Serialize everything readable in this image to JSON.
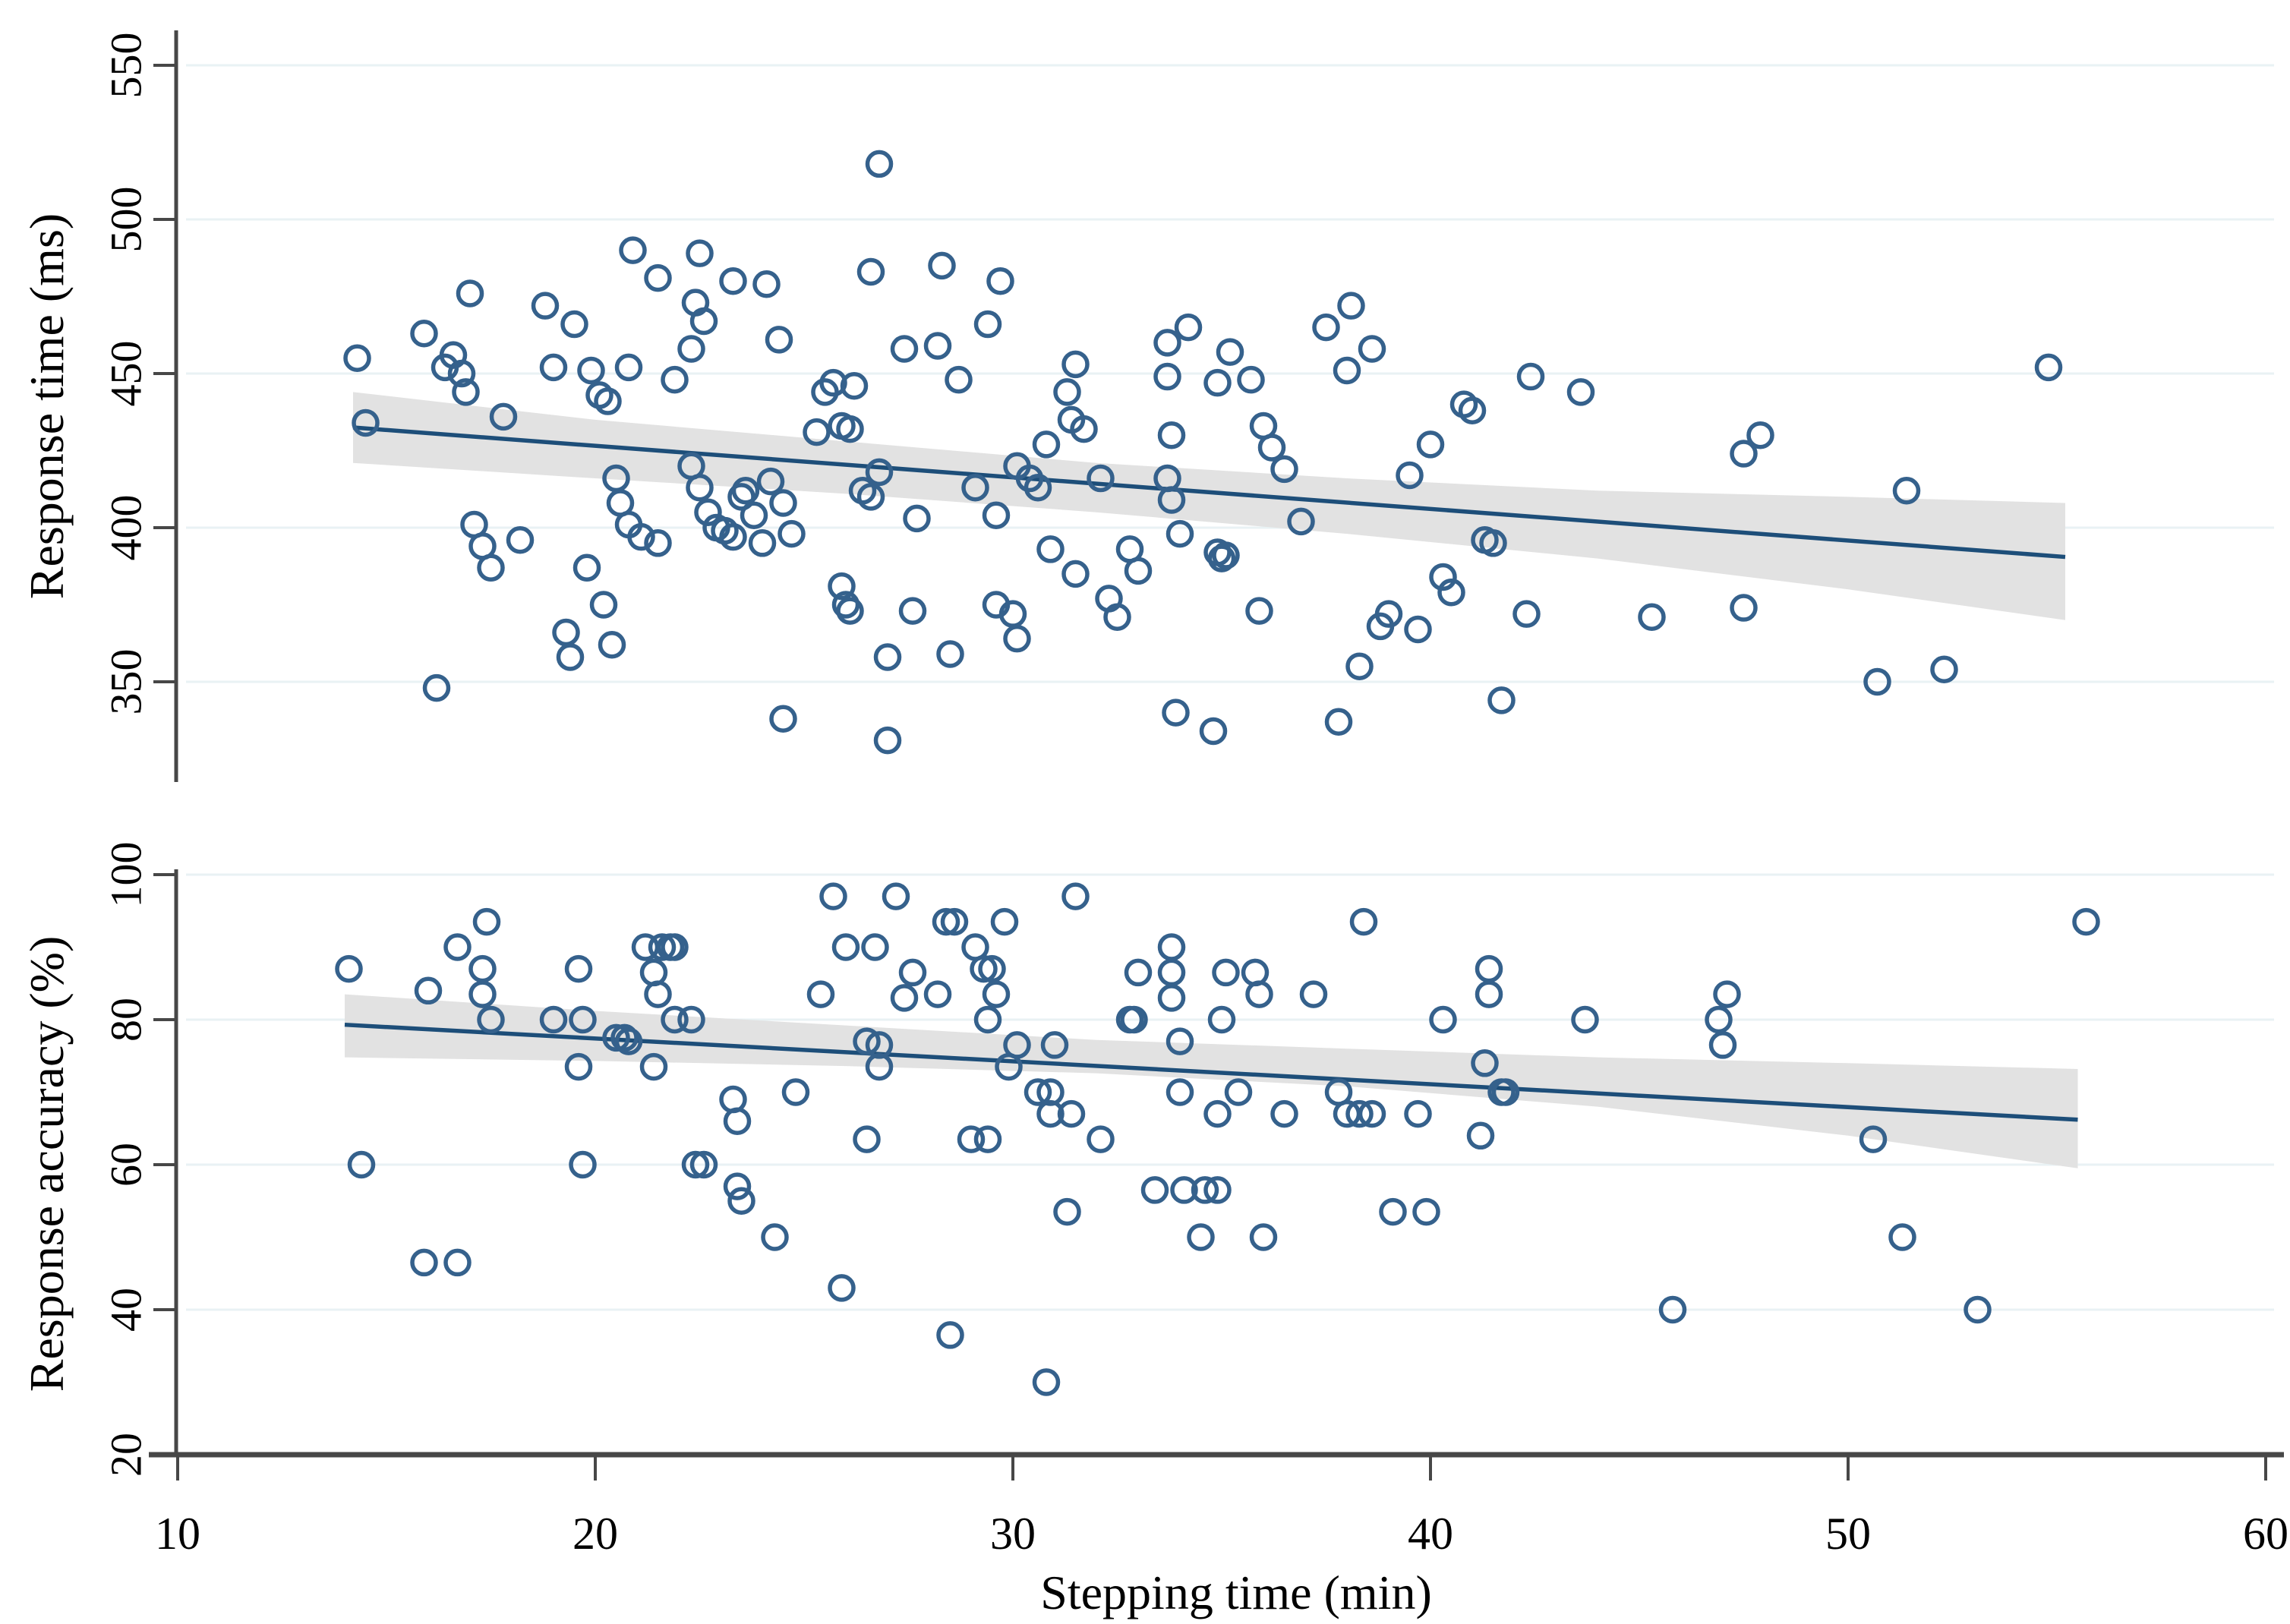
{
  "figure": {
    "xlabel": "Stepping time (min)",
    "top_ylabel": "Response time (ms)",
    "bottom_ylabel": "Response accuracy (%)"
  },
  "colors": {
    "marker": "#35618c",
    "trend_line": "#1d4e79",
    "ci_band": "#e2e2e2",
    "gridline": "#e9f2f4",
    "axis": "#474747",
    "text": "#000000"
  },
  "chart_data": [
    {
      "type": "scatter",
      "panel": "top",
      "ylabel": "Response time (ms)",
      "xlabel": "Stepping time (min)",
      "xlim": [
        10,
        60
      ],
      "ylim": [
        317,
        562
      ],
      "xticks": [
        10,
        20,
        30,
        40,
        50,
        60
      ],
      "yticks": [
        350,
        400,
        450,
        500,
        550
      ],
      "grid": true,
      "legend": "none",
      "points": [
        [
          14.3,
          455
        ],
        [
          14.5,
          434
        ],
        [
          15.9,
          463
        ],
        [
          16.2,
          348
        ],
        [
          16.4,
          452
        ],
        [
          16.6,
          456
        ],
        [
          16.8,
          450
        ],
        [
          16.9,
          444
        ],
        [
          17.0,
          476
        ],
        [
          17.1,
          401
        ],
        [
          17.3,
          394
        ],
        [
          17.5,
          387
        ],
        [
          17.8,
          436
        ],
        [
          18.2,
          396
        ],
        [
          18.8,
          472
        ],
        [
          19.0,
          452
        ],
        [
          19.3,
          366
        ],
        [
          19.4,
          358
        ],
        [
          19.5,
          466
        ],
        [
          19.8,
          387
        ],
        [
          19.9,
          451
        ],
        [
          20.1,
          443
        ],
        [
          20.2,
          375
        ],
        [
          20.4,
          362
        ],
        [
          20.3,
          441
        ],
        [
          20.9,
          490
        ],
        [
          21.5,
          481
        ],
        [
          20.5,
          416
        ],
        [
          20.6,
          408
        ],
        [
          20.8,
          401
        ],
        [
          21.1,
          397
        ],
        [
          21.5,
          395
        ],
        [
          20.8,
          452
        ],
        [
          21.9,
          448
        ],
        [
          22.3,
          458
        ],
        [
          22.4,
          473
        ],
        [
          22.6,
          467
        ],
        [
          22.3,
          420
        ],
        [
          22.5,
          413
        ],
        [
          22.7,
          405
        ],
        [
          22.9,
          400
        ],
        [
          23.1,
          399
        ],
        [
          23.3,
          397
        ],
        [
          23.5,
          410
        ],
        [
          23.6,
          412
        ],
        [
          23.8,
          404
        ],
        [
          24.0,
          395
        ],
        [
          22.5,
          489
        ],
        [
          23.3,
          480
        ],
        [
          24.1,
          479
        ],
        [
          24.4,
          461
        ],
        [
          24.2,
          415
        ],
        [
          24.5,
          408
        ],
        [
          24.7,
          398
        ],
        [
          24.5,
          338
        ],
        [
          25.3,
          431
        ],
        [
          25.5,
          444
        ],
        [
          25.7,
          447
        ],
        [
          25.9,
          433
        ],
        [
          26.1,
          432
        ],
        [
          26.2,
          446
        ],
        [
          25.9,
          381
        ],
        [
          26.0,
          375
        ],
        [
          26.1,
          373
        ],
        [
          26.4,
          412
        ],
        [
          26.6,
          410
        ],
        [
          26.8,
          418
        ],
        [
          26.6,
          483
        ],
        [
          26.8,
          518
        ],
        [
          27.0,
          331
        ],
        [
          27.4,
          458
        ],
        [
          28.2,
          459
        ],
        [
          28.3,
          485
        ],
        [
          28.7,
          448
        ],
        [
          29.4,
          466
        ],
        [
          29.7,
          480
        ],
        [
          27.7,
          403
        ],
        [
          27.6,
          373
        ],
        [
          27.0,
          358
        ],
        [
          28.5,
          359
        ],
        [
          30.1,
          364
        ],
        [
          29.1,
          413
        ],
        [
          29.6,
          404
        ],
        [
          30.1,
          420
        ],
        [
          30.4,
          416
        ],
        [
          30.6,
          413
        ],
        [
          30.8,
          427
        ],
        [
          29.6,
          375
        ],
        [
          30.0,
          372
        ],
        [
          30.9,
          393
        ],
        [
          32.8,
          393
        ],
        [
          31.3,
          444
        ],
        [
          31.5,
          453
        ],
        [
          31.4,
          435
        ],
        [
          31.7,
          432
        ],
        [
          32.1,
          416
        ],
        [
          31.5,
          385
        ],
        [
          32.3,
          377
        ],
        [
          32.5,
          371
        ],
        [
          33.0,
          386
        ],
        [
          33.7,
          460
        ],
        [
          33.7,
          449
        ],
        [
          33.8,
          430
        ],
        [
          33.7,
          416
        ],
        [
          33.8,
          409
        ],
        [
          34.0,
          398
        ],
        [
          34.2,
          465
        ],
        [
          34.9,
          447
        ],
        [
          35.2,
          457
        ],
        [
          34.9,
          392
        ],
        [
          35.0,
          390
        ],
        [
          35.1,
          391
        ],
        [
          33.9,
          340
        ],
        [
          34.8,
          334
        ],
        [
          35.7,
          448
        ],
        [
          36.0,
          433
        ],
        [
          36.2,
          426
        ],
        [
          36.5,
          419
        ],
        [
          36.9,
          402
        ],
        [
          35.9,
          373
        ],
        [
          37.5,
          465
        ],
        [
          38.0,
          451
        ],
        [
          37.8,
          337
        ],
        [
          38.1,
          472
        ],
        [
          38.6,
          458
        ],
        [
          38.8,
          368
        ],
        [
          39.0,
          372
        ],
        [
          39.7,
          367
        ],
        [
          38.3,
          355
        ],
        [
          40.3,
          384
        ],
        [
          40.5,
          379
        ],
        [
          39.5,
          417
        ],
        [
          40.0,
          427
        ],
        [
          40.8,
          440
        ],
        [
          41.0,
          438
        ],
        [
          42.4,
          449
        ],
        [
          43.6,
          444
        ],
        [
          41.3,
          396
        ],
        [
          41.5,
          395
        ],
        [
          42.3,
          372
        ],
        [
          41.7,
          344
        ],
        [
          45.3,
          371
        ],
        [
          47.5,
          374
        ],
        [
          47.5,
          424
        ],
        [
          47.9,
          430
        ],
        [
          50.7,
          350
        ],
        [
          51.4,
          412
        ],
        [
          52.3,
          354
        ],
        [
          54.8,
          452
        ]
      ],
      "regression": {
        "line": [
          [
            14.2,
            432.5
          ],
          [
            55.2,
            390.5
          ]
        ],
        "ci_upper": [
          [
            14.2,
            444
          ],
          [
            20,
            435
          ],
          [
            26,
            428
          ],
          [
            32,
            421
          ],
          [
            38,
            416
          ],
          [
            44,
            412
          ],
          [
            50,
            410
          ],
          [
            55.2,
            408
          ]
        ],
        "ci_lower": [
          [
            14.2,
            421
          ],
          [
            20,
            416
          ],
          [
            26,
            411
          ],
          [
            32,
            405
          ],
          [
            38,
            398
          ],
          [
            44,
            390
          ],
          [
            50,
            380
          ],
          [
            55.2,
            370
          ]
        ]
      }
    },
    {
      "type": "scatter",
      "panel": "bottom",
      "ylabel": "Response accuracy (%)",
      "xlabel": "Stepping time (min)",
      "xlim": [
        10,
        60
      ],
      "ylim": [
        20,
        100
      ],
      "xticks": [
        10,
        20,
        30,
        40,
        50,
        60
      ],
      "yticks": [
        20,
        40,
        60,
        80,
        100
      ],
      "grid": true,
      "legend": "none",
      "points": [
        [
          14.1,
          87
        ],
        [
          14.4,
          60
        ],
        [
          16.0,
          84
        ],
        [
          15.9,
          46.5
        ],
        [
          16.7,
          46.5
        ],
        [
          16.7,
          90
        ],
        [
          17.4,
          93.5
        ],
        [
          17.3,
          87
        ],
        [
          17.3,
          83.5
        ],
        [
          17.5,
          80
        ],
        [
          19.0,
          80
        ],
        [
          19.6,
          87
        ],
        [
          19.7,
          80
        ],
        [
          19.6,
          73.5
        ],
        [
          19.7,
          60
        ],
        [
          20.5,
          77.5
        ],
        [
          20.7,
          77.5
        ],
        [
          20.8,
          77
        ],
        [
          21.2,
          90
        ],
        [
          21.6,
          90
        ],
        [
          21.8,
          90
        ],
        [
          21.9,
          90
        ],
        [
          21.4,
          86.5
        ],
        [
          21.5,
          83.5
        ],
        [
          21.4,
          73.5
        ],
        [
          21.9,
          80
        ],
        [
          22.3,
          80
        ],
        [
          22.4,
          60
        ],
        [
          22.6,
          60
        ],
        [
          23.4,
          57
        ],
        [
          23.5,
          55
        ],
        [
          23.3,
          69
        ],
        [
          23.4,
          66
        ],
        [
          24.8,
          70
        ],
        [
          24.3,
          50
        ],
        [
          25.9,
          43
        ],
        [
          25.4,
          83.5
        ],
        [
          25.7,
          97
        ],
        [
          26.0,
          90
        ],
        [
          26.7,
          90
        ],
        [
          26.5,
          77
        ],
        [
          26.8,
          76.5
        ],
        [
          26.8,
          73.5
        ],
        [
          26.5,
          63.5
        ],
        [
          27.2,
          97
        ],
        [
          28.4,
          93.5
        ],
        [
          28.6,
          93.5
        ],
        [
          29.8,
          93.5
        ],
        [
          31.5,
          97
        ],
        [
          29.1,
          90
        ],
        [
          27.6,
          86.5
        ],
        [
          27.4,
          83
        ],
        [
          28.2,
          83.5
        ],
        [
          29.3,
          87
        ],
        [
          29.5,
          87
        ],
        [
          29.6,
          83.5
        ],
        [
          29.4,
          80
        ],
        [
          30.1,
          76.5
        ],
        [
          29.9,
          73.5
        ],
        [
          31.0,
          76.5
        ],
        [
          30.6,
          70
        ],
        [
          30.9,
          70
        ],
        [
          30.9,
          67
        ],
        [
          31.4,
          67
        ],
        [
          32.1,
          63.5
        ],
        [
          29.0,
          63.5
        ],
        [
          29.4,
          63.5
        ],
        [
          32.8,
          80
        ],
        [
          32.9,
          80
        ],
        [
          33.0,
          86.5
        ],
        [
          33.8,
          90
        ],
        [
          33.8,
          86.5
        ],
        [
          33.8,
          83
        ],
        [
          34.0,
          77
        ],
        [
          34.0,
          70
        ],
        [
          35.0,
          80
        ],
        [
          35.1,
          86.5
        ],
        [
          35.8,
          86.5
        ],
        [
          35.9,
          83.5
        ],
        [
          34.9,
          67
        ],
        [
          35.4,
          70
        ],
        [
          36.5,
          67
        ],
        [
          37.2,
          83.5
        ],
        [
          37.8,
          70
        ],
        [
          38.0,
          67
        ],
        [
          38.3,
          67
        ],
        [
          38.6,
          67
        ],
        [
          38.4,
          93.5
        ],
        [
          39.7,
          67
        ],
        [
          40.3,
          80
        ],
        [
          41.2,
          64
        ],
        [
          41.3,
          74
        ],
        [
          41.4,
          87
        ],
        [
          41.4,
          83.5
        ],
        [
          41.7,
          70
        ],
        [
          41.8,
          70
        ],
        [
          33.4,
          56.5
        ],
        [
          34.1,
          56.5
        ],
        [
          34.6,
          56.5
        ],
        [
          34.9,
          56.5
        ],
        [
          31.3,
          53.5
        ],
        [
          34.5,
          50
        ],
        [
          36.0,
          50
        ],
        [
          39.1,
          53.5
        ],
        [
          39.9,
          53.5
        ],
        [
          28.5,
          36.5
        ],
        [
          30.8,
          30
        ],
        [
          43.7,
          80
        ],
        [
          45.8,
          40
        ],
        [
          47.1,
          83.5
        ],
        [
          46.9,
          80
        ],
        [
          47.0,
          76.5
        ],
        [
          50.6,
          63.5
        ],
        [
          51.3,
          50
        ],
        [
          53.1,
          40
        ],
        [
          55.7,
          93.5
        ]
      ],
      "regression": {
        "line": [
          [
            14.0,
            79.3
          ],
          [
            55.5,
            66.2
          ]
        ],
        "ci_upper": [
          [
            14.0,
            83.5
          ],
          [
            20,
            81.2
          ],
          [
            26,
            79.2
          ],
          [
            32,
            77.2
          ],
          [
            38,
            76.0
          ],
          [
            44,
            74.8
          ],
          [
            50,
            74.0
          ],
          [
            55.5,
            73.2
          ]
        ],
        "ci_lower": [
          [
            14.0,
            74.8
          ],
          [
            20,
            74.3
          ],
          [
            26,
            73.6
          ],
          [
            32,
            72.6
          ],
          [
            38,
            70.8
          ],
          [
            44,
            68.0
          ],
          [
            50,
            64.0
          ],
          [
            55.5,
            59.5
          ]
        ]
      }
    }
  ]
}
